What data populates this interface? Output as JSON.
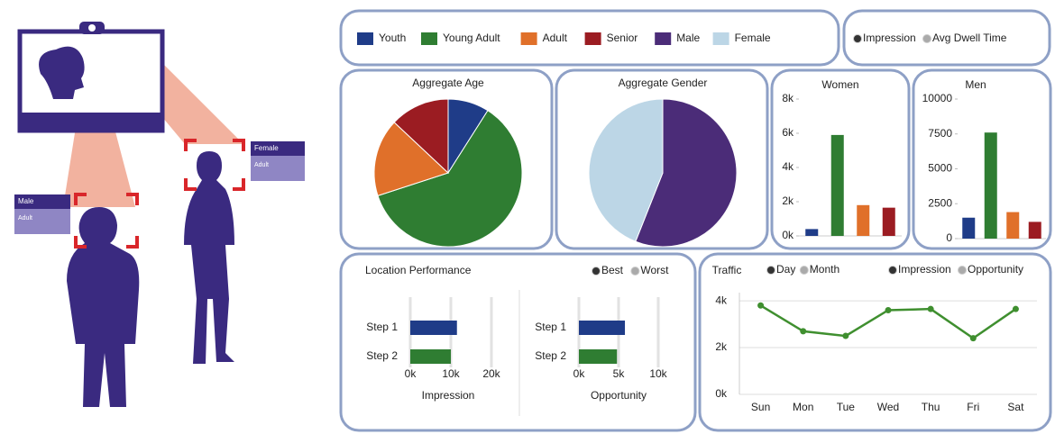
{
  "illustration": {
    "labels": [
      {
        "title": "Male",
        "detail": "Adult"
      },
      {
        "title": "Female",
        "detail": "Adult"
      }
    ]
  },
  "legend": [
    {
      "label": "Youth",
      "color": "#1f3c88"
    },
    {
      "label": "Young Adult",
      "color": "#2f7d32"
    },
    {
      "label": "Adult",
      "color": "#e0702a"
    },
    {
      "label": "Senior",
      "color": "#9b1c22"
    },
    {
      "label": "Male",
      "color": "#4b2c78"
    },
    {
      "label": "Female",
      "color": "#bcd6e6"
    }
  ],
  "metric_legend": [
    {
      "label": "Impression",
      "color": "#333333"
    },
    {
      "label": "Avg Dwell Time",
      "color": "#aaaaaa"
    }
  ],
  "location_panel": {
    "title": "Location Performance",
    "legend": [
      {
        "label": "Best",
        "color": "#333333"
      },
      {
        "label": "Worst",
        "color": "#aaaaaa"
      }
    ]
  },
  "traffic_panel": {
    "period_legend": [
      {
        "label": "Day",
        "color": "#333333"
      },
      {
        "label": "Month",
        "color": "#aaaaaa"
      }
    ],
    "metric_legend": [
      {
        "label": "Impression",
        "color": "#333333"
      },
      {
        "label": "Opportunity",
        "color": "#aaaaaa"
      }
    ]
  },
  "chart_data": [
    {
      "type": "pie",
      "title": "Aggregate Age",
      "values": [
        9,
        61,
        17,
        13
      ],
      "colors": [
        "#1f3c88",
        "#2f7d32",
        "#e0702a",
        "#9b1c22"
      ]
    },
    {
      "type": "pie",
      "title": "Aggregate Gender",
      "values": [
        56,
        44
      ],
      "colors": [
        "#4b2c78",
        "#bcd6e6"
      ]
    },
    {
      "type": "bar",
      "title": "Women",
      "categories": [
        null,
        null,
        null,
        null
      ],
      "values": [
        400,
        5900,
        1800,
        1650
      ],
      "colors": [
        "#1f3c88",
        "#2f7d32",
        "#e0702a",
        "#9b1c22"
      ],
      "ylim": [
        0,
        8000
      ],
      "yticks": [
        {
          "value": 0,
          "label": "0k"
        },
        {
          "value": 2000,
          "label": "2k"
        },
        {
          "value": 4000,
          "label": "4k"
        },
        {
          "value": 6000,
          "label": "6k"
        },
        {
          "value": 8000,
          "label": "8k"
        }
      ]
    },
    {
      "type": "bar",
      "title": "Men",
      "categories": [
        null,
        null,
        null,
        null
      ],
      "values": [
        1500,
        7600,
        1900,
        1200
      ],
      "colors": [
        "#1f3c88",
        "#2f7d32",
        "#e0702a",
        "#9b1c22"
      ],
      "ylim": [
        0,
        10000
      ],
      "yticks": [
        0,
        2500,
        5000,
        7500,
        10000
      ]
    },
    {
      "type": "hbar",
      "xlabel": "Impression",
      "categories": [
        "Step 1",
        "Step 2"
      ],
      "values": [
        11500,
        10000
      ],
      "colors": [
        "#1f3c88",
        "#2f7d32"
      ],
      "xlim": [
        0,
        20000
      ],
      "xticks": [
        {
          "value": 0,
          "label": "0k"
        },
        {
          "value": 10000,
          "label": "10k"
        },
        {
          "value": 20000,
          "label": "20k"
        }
      ]
    },
    {
      "type": "hbar",
      "xlabel": "Opportunity",
      "categories": [
        "Step 1",
        "Step 2"
      ],
      "values": [
        5800,
        4800
      ],
      "colors": [
        "#1f3c88",
        "#2f7d32"
      ],
      "xlim": [
        0,
        10000
      ],
      "xticks": [
        {
          "value": 0,
          "label": "0k"
        },
        {
          "value": 5000,
          "label": "5k"
        },
        {
          "value": 10000,
          "label": "10k"
        }
      ]
    },
    {
      "type": "line",
      "title": "Traffic",
      "categories": [
        "Sun",
        "Mon",
        "Tue",
        "Wed",
        "Thu",
        "Fri",
        "Sat"
      ],
      "values": [
        3800,
        2700,
        2500,
        3600,
        3650,
        2400,
        3650
      ],
      "color": "#3f8f2f",
      "ylim": [
        0,
        4350
      ],
      "yticks": [
        {
          "value": 0,
          "label": "0k"
        },
        {
          "value": 2000,
          "label": "2k"
        },
        {
          "value": 4000,
          "label": "4k"
        }
      ],
      "grid": true
    }
  ]
}
